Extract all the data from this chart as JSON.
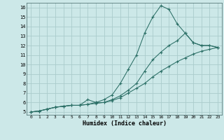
{
  "xlabel": "Humidex (Indice chaleur)",
  "background_color": "#cce8e8",
  "grid_color": "#aacccc",
  "line_color": "#2a6e65",
  "xlim": [
    -0.5,
    23.5
  ],
  "ylim": [
    4.7,
    16.5
  ],
  "xticks": [
    0,
    1,
    2,
    3,
    4,
    5,
    6,
    7,
    8,
    9,
    10,
    11,
    12,
    13,
    14,
    15,
    16,
    17,
    18,
    19,
    20,
    21,
    22,
    23
  ],
  "yticks": [
    5,
    6,
    7,
    8,
    9,
    10,
    11,
    12,
    13,
    14,
    15,
    16
  ],
  "curve1_x": [
    0,
    1,
    2,
    3,
    4,
    5,
    6,
    7,
    8,
    9,
    10,
    11,
    12,
    13,
    14,
    15,
    16,
    17,
    18,
    19,
    20,
    21,
    22,
    23
  ],
  "curve1_y": [
    5.0,
    5.1,
    5.3,
    5.5,
    5.6,
    5.7,
    5.7,
    5.8,
    6.0,
    6.3,
    6.8,
    8.0,
    9.5,
    11.0,
    13.3,
    15.0,
    16.2,
    15.8,
    14.3,
    13.3,
    12.3,
    12.0,
    12.0,
    11.8
  ],
  "curve2_x": [
    0,
    1,
    2,
    3,
    4,
    5,
    6,
    7,
    8,
    9,
    10,
    11,
    12,
    13,
    14,
    15,
    16,
    17,
    18,
    19,
    20,
    21,
    22,
    23
  ],
  "curve2_y": [
    5.0,
    5.1,
    5.3,
    5.5,
    5.6,
    5.7,
    5.7,
    6.3,
    6.0,
    6.0,
    6.3,
    6.7,
    7.3,
    8.0,
    9.3,
    10.5,
    11.3,
    12.0,
    12.5,
    13.3,
    12.3,
    12.0,
    12.0,
    11.8
  ],
  "curve3_x": [
    0,
    1,
    2,
    3,
    4,
    5,
    6,
    7,
    8,
    9,
    10,
    11,
    12,
    13,
    14,
    15,
    16,
    17,
    18,
    19,
    20,
    21,
    22,
    23
  ],
  "curve3_y": [
    5.0,
    5.1,
    5.3,
    5.5,
    5.6,
    5.7,
    5.7,
    5.8,
    5.9,
    6.0,
    6.2,
    6.5,
    7.0,
    7.5,
    8.0,
    8.7,
    9.3,
    9.8,
    10.3,
    10.7,
    11.1,
    11.4,
    11.6,
    11.8
  ]
}
